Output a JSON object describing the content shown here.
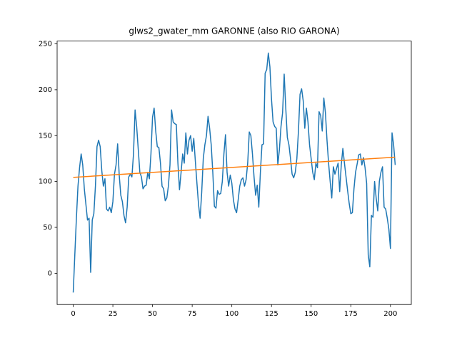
{
  "chart_data": {
    "type": "line",
    "title": "glws2_gwater_mm GARONNE (also RIO GARONA)",
    "xlim": [
      -10.15,
      213.15
    ],
    "ylim": [
      -34.05,
      253.05
    ],
    "xticks": [
      0,
      25,
      50,
      75,
      100,
      125,
      150,
      175,
      200
    ],
    "yticks": [
      0,
      50,
      100,
      150,
      200,
      250
    ],
    "series": [
      {
        "color": "#1f77b4",
        "x": [
          0,
          1,
          2,
          3,
          4,
          5,
          6,
          7,
          8,
          9,
          10,
          11,
          12,
          13,
          14,
          15,
          16,
          17,
          18,
          19,
          20,
          21,
          22,
          23,
          24,
          25,
          26,
          27,
          28,
          29,
          30,
          31,
          32,
          33,
          34,
          35,
          36,
          37,
          38,
          39,
          40,
          41,
          42,
          43,
          44,
          45,
          46,
          47,
          48,
          49,
          50,
          51,
          52,
          53,
          54,
          55,
          56,
          57,
          58,
          59,
          60,
          61,
          62,
          63,
          64,
          65,
          66,
          67,
          68,
          69,
          70,
          71,
          72,
          73,
          74,
          75,
          76,
          77,
          78,
          79,
          80,
          81,
          82,
          83,
          84,
          85,
          86,
          87,
          88,
          89,
          90,
          91,
          92,
          93,
          94,
          95,
          96,
          97,
          98,
          99,
          100,
          101,
          102,
          103,
          104,
          105,
          106,
          107,
          108,
          109,
          110,
          111,
          112,
          113,
          114,
          115,
          116,
          117,
          118,
          119,
          120,
          121,
          122,
          123,
          124,
          125,
          126,
          127,
          128,
          129,
          130,
          131,
          132,
          133,
          134,
          135,
          136,
          137,
          138,
          139,
          140,
          141,
          142,
          143,
          144,
          145,
          146,
          147,
          148,
          149,
          150,
          151,
          152,
          153,
          154,
          155,
          156,
          157,
          158,
          159,
          160,
          161,
          162,
          163,
          164,
          165,
          166,
          167,
          168,
          169,
          170,
          171,
          172,
          173,
          174,
          175,
          176,
          177,
          178,
          179,
          180,
          181,
          182,
          183,
          184,
          185,
          186,
          187,
          188,
          189,
          190,
          191,
          192,
          193,
          194,
          195,
          196,
          197,
          198,
          199,
          200,
          201,
          202,
          203
        ],
        "values": [
          -21,
          20,
          60,
          95,
          115,
          130,
          118,
          92,
          75,
          58,
          60,
          1,
          58,
          65,
          95,
          138,
          145,
          138,
          112,
          95,
          103,
          70,
          68,
          72,
          66,
          78,
          108,
          118,
          141,
          107,
          85,
          78,
          63,
          55,
          72,
          105,
          108,
          105,
          130,
          178,
          160,
          135,
          110,
          105,
          92,
          95,
          96,
          110,
          103,
          130,
          170,
          180,
          155,
          138,
          137,
          120,
          95,
          92,
          79,
          82,
          95,
          118,
          178,
          165,
          163,
          162,
          120,
          91,
          110,
          130,
          120,
          153,
          130,
          145,
          150,
          133,
          147,
          122,
          98,
          75,
          60,
          88,
          125,
          140,
          150,
          171,
          158,
          140,
          110,
          73,
          71,
          90,
          86,
          87,
          100,
          130,
          151,
          110,
          95,
          107,
          98,
          80,
          70,
          66,
          80,
          95,
          102,
          104,
          95,
          102,
          120,
          154,
          150,
          130,
          105,
          85,
          96,
          72,
          110,
          140,
          141,
          218,
          222,
          240,
          225,
          190,
          165,
          160,
          158,
          118,
          135,
          160,
          175,
          217,
          180,
          148,
          140,
          125,
          108,
          104,
          110,
          125,
          155,
          195,
          201,
          188,
          158,
          180,
          165,
          140,
          125,
          110,
          102,
          120,
          115,
          176,
          172,
          155,
          191,
          175,
          145,
          120,
          100,
          82,
          116,
          108,
          114,
          120,
          89,
          118,
          136,
          120,
          105,
          90,
          76,
          65,
          66,
          92,
          110,
          119,
          129,
          130,
          118,
          126,
          115,
          98,
          20,
          7,
          63,
          61,
          100,
          82,
          68,
          100,
          110,
          116,
          72,
          70,
          60,
          48,
          27,
          153,
          140,
          118
        ]
      },
      {
        "color": "#ff7f0e",
        "x": [
          0,
          203
        ],
        "values": [
          104.5,
          126.5
        ]
      }
    ]
  }
}
